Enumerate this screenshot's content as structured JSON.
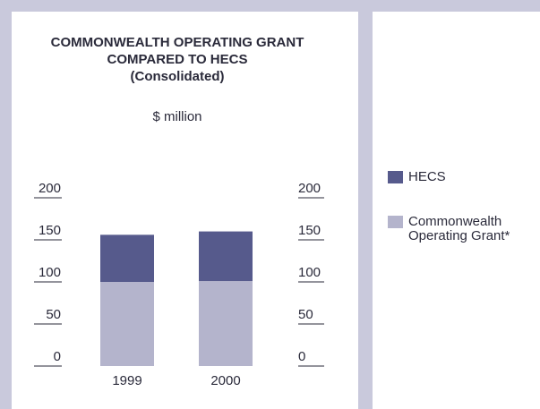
{
  "chart_data": {
    "type": "stacked_bar",
    "title": [
      "COMMONWEALTH OPERATING GRANT",
      "COMPARED TO HECS"
    ],
    "subtitle": "(Consolidated)",
    "y_label": "$ million",
    "categories": [
      "1999",
      "2000"
    ],
    "series": [
      {
        "name": "Commonwealth Operating Grant*",
        "color": "#b4b4cc",
        "values": [
          100,
          101
        ]
      },
      {
        "name": "HECS",
        "color": "#565a8c",
        "values": [
          56,
          59
        ]
      }
    ],
    "ylim": [
      0,
      200
    ],
    "yticks": [
      0,
      50,
      100,
      150,
      200
    ],
    "right_axis": true
  }
}
